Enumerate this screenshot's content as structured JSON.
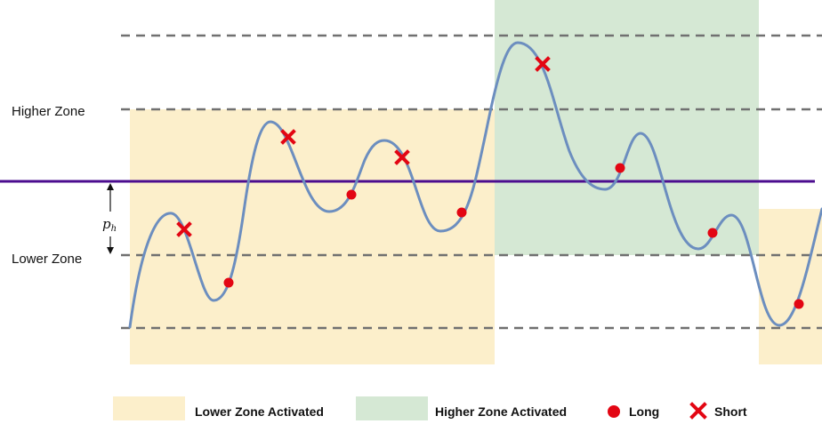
{
  "labels": {
    "higher_zone": "Higher Zone",
    "lower_zone": "Lower Zone",
    "ph": "p",
    "ph_sub": "h"
  },
  "legend": {
    "lower_activated": "Lower Zone Activated",
    "higher_activated": "Higher Zone Activated",
    "long": "Long",
    "short": "Short"
  },
  "colors": {
    "lower_zone_fill": "#fcefcb",
    "higher_zone_fill": "#d5e8d4",
    "price_line": "#6c8ebf",
    "pivot_line": "#4b0d8f",
    "grid_dash": "#707070",
    "marker": "#e30613"
  },
  "icons": {
    "long": "red-circle-icon",
    "short": "red-cross-icon"
  }
}
